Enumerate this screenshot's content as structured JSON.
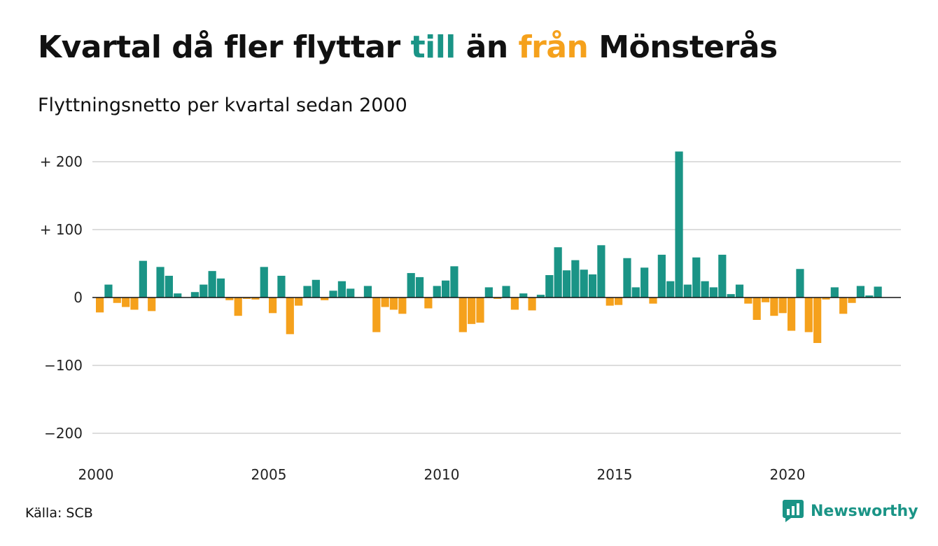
{
  "title": {
    "part1": "Kvartal då fler flyttar ",
    "part2": "till",
    "part3": " än ",
    "part4": "från",
    "part5": " Mönsterås"
  },
  "subtitle": "Flyttningsnetto per kvartal sedan 2000",
  "colors": {
    "positive": "#1a9486",
    "negative": "#f5a11c",
    "grid": "#dddddd",
    "zero": "#111111"
  },
  "chart_data": {
    "type": "bar",
    "title": "Kvartal då fler flyttar till än från Mönsterås",
    "subtitle": "Flyttningsnetto per kvartal sedan 2000",
    "xlabel": "",
    "ylabel": "",
    "x_start": "2000-Q1",
    "ylim": [
      -220,
      220
    ],
    "yticks": [
      200,
      100,
      0,
      -100,
      -200
    ],
    "ytick_labels": [
      "+ 200",
      "+ 100",
      "0",
      "−100",
      "−200"
    ],
    "xticks": [
      "2000",
      "2005",
      "2010",
      "2015",
      "2020"
    ],
    "grid": true,
    "values": [
      -22,
      19,
      -8,
      -14,
      -18,
      54,
      -20,
      45,
      32,
      6,
      0,
      8,
      19,
      39,
      28,
      -4,
      -27,
      -2,
      -3,
      45,
      -23,
      32,
      -54,
      -12,
      17,
      26,
      -4,
      10,
      24,
      13,
      0,
      17,
      -51,
      -14,
      -18,
      -24,
      36,
      30,
      -16,
      17,
      25,
      46,
      -51,
      -39,
      -37,
      15,
      -2,
      17,
      -18,
      6,
      -19,
      4,
      33,
      74,
      40,
      55,
      41,
      34,
      77,
      -12,
      -11,
      58,
      15,
      44,
      -9,
      63,
      24,
      215,
      19,
      59,
      24,
      15,
      63,
      5,
      19,
      -9,
      -33,
      -7,
      -27,
      -23,
      -49,
      42,
      -51,
      -67,
      -3,
      15,
      -24,
      -8,
      17,
      3,
      16
    ]
  },
  "source": "Källa: SCB",
  "logo": {
    "text": "Newsworthy",
    "icon": "newsworthy-logo-icon"
  }
}
